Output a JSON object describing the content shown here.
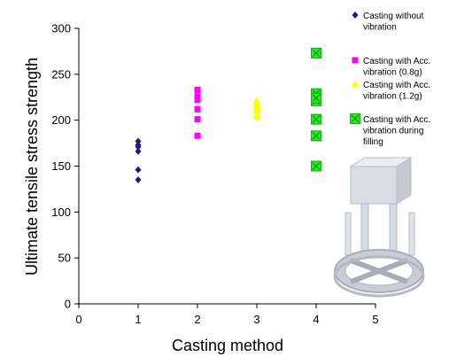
{
  "chart_data": {
    "type": "scatter",
    "xlabel": "Casting method",
    "ylabel": "Ultimate tensile stress strength",
    "xlim": [
      0,
      5
    ],
    "ylim": [
      0,
      300
    ],
    "xticks": [
      0,
      1,
      2,
      3,
      4,
      5
    ],
    "yticks": [
      0,
      50,
      100,
      150,
      200,
      250,
      300
    ],
    "grid": false,
    "legend_position": "right",
    "series": [
      {
        "name": "Casting without vibration",
        "legend_lines": [
          "Casting without",
          "vibration"
        ],
        "marker": "diamond",
        "color": "#1a1a8c",
        "x": [
          1,
          1,
          1,
          1,
          1,
          1
        ],
        "y": [
          177,
          171,
          166,
          146,
          135,
          173
        ]
      },
      {
        "name": "Casting with Acc. vibration (0.8g)",
        "legend_lines": [
          "Casting with Acc.",
          "vibration (0.8g)"
        ],
        "marker": "square",
        "color": "#ff00ff",
        "x": [
          2,
          2,
          2,
          2,
          2,
          2
        ],
        "y": [
          233,
          222,
          212,
          201,
          183,
          226
        ]
      },
      {
        "name": "Casting with Acc. vibration (1.2g)",
        "legend_lines": [
          "Casting with Acc.",
          "vibration (1.2g)"
        ],
        "marker": "triangle",
        "color": "#ffff00",
        "x": [
          3,
          3,
          3,
          3,
          3,
          3
        ],
        "y": [
          221,
          216,
          213,
          210,
          204,
          218
        ]
      },
      {
        "name": "Casting with Acc. vibration during filling",
        "legend_lines": [
          "Casting with Acc.",
          "vibration during",
          "filling"
        ],
        "marker": "square-x",
        "color": "#22ee22",
        "x": [
          4,
          4,
          4,
          4,
          4,
          4,
          4
        ],
        "y": [
          273,
          229,
          221,
          201,
          183,
          150,
          224
        ]
      }
    ]
  }
}
